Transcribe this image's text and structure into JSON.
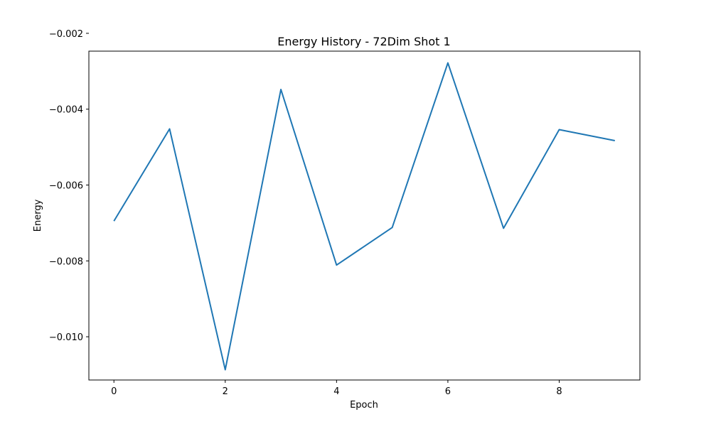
{
  "chart_data": {
    "type": "line",
    "title": "Energy History - 72Dim Shot 1",
    "xlabel": "Epoch",
    "ylabel": "Energy",
    "x": [
      0,
      1,
      2,
      3,
      4,
      5,
      6,
      7,
      8,
      9
    ],
    "series": [
      {
        "values": [
          -0.00695,
          -0.00452,
          -0.01087,
          -0.00348,
          -0.00811,
          -0.00712,
          -0.00278,
          -0.00714,
          -0.00454,
          -0.00483
        ]
      }
    ],
    "xlim": [
      -0.45,
      9.45
    ],
    "ylim": [
      -0.01114,
      -0.00247
    ],
    "xticks": [
      0,
      2,
      4,
      6,
      8
    ],
    "xtick_labels": [
      "0",
      "2",
      "4",
      "6",
      "8"
    ],
    "yticks": [
      -0.01,
      -0.008,
      -0.006,
      -0.004,
      -0.002
    ],
    "ytick_labels": [
      "−0.010",
      "−0.008",
      "−0.006",
      "−0.004",
      "−0.002"
    ],
    "grid": false,
    "legend": "none",
    "line_color": "#1f77b4"
  }
}
